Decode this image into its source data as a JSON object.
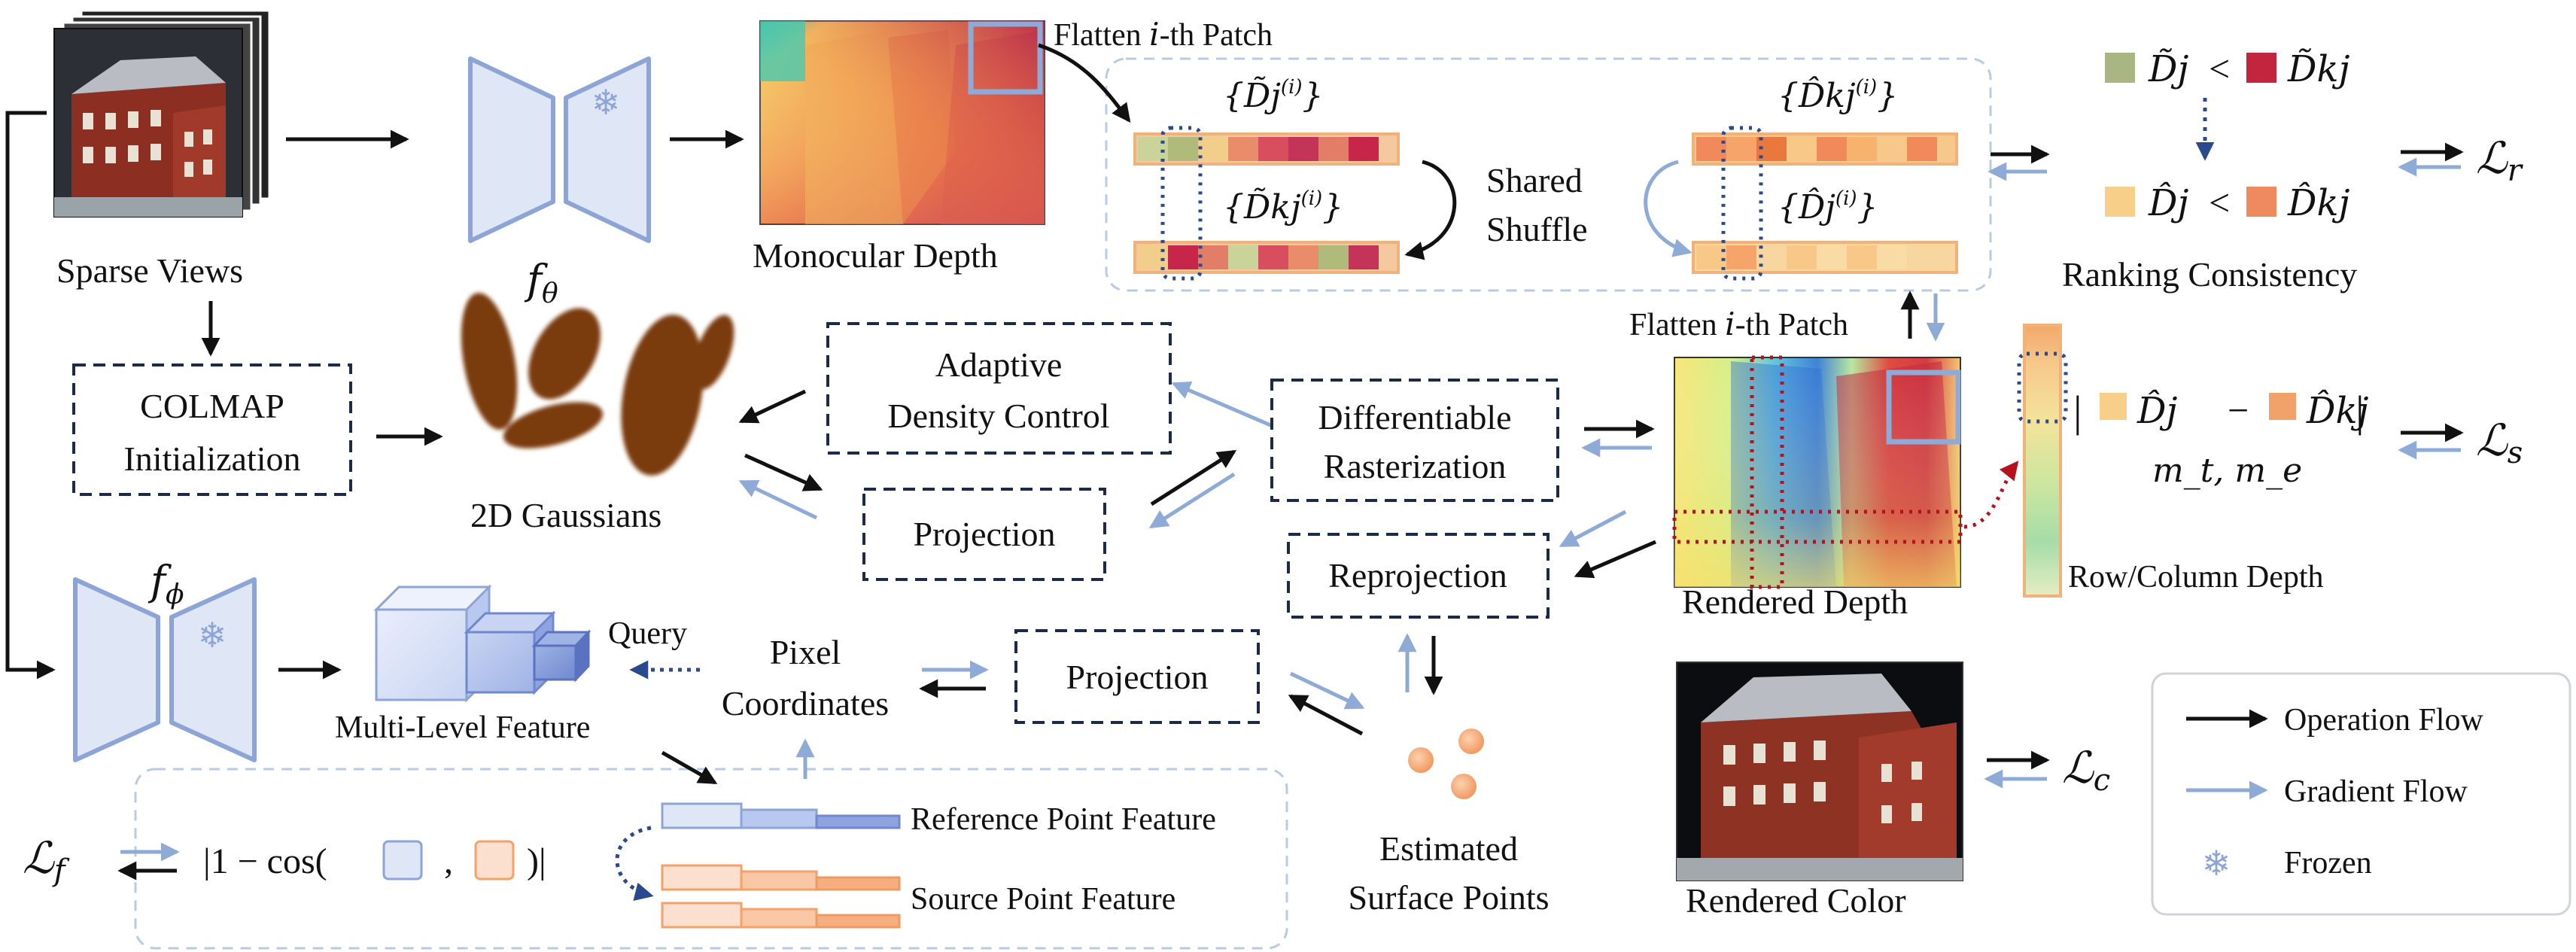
{
  "labels": {
    "sparse_views": "Sparse Views",
    "monocular_depth": "Monocular Depth",
    "flatten_top": "Flatten",
    "flatten_top_th": "-th Patch",
    "flatten_mid": "Flatten",
    "flatten_mid_th": "-th Patch",
    "shared_shuffle_1": "Shared",
    "shared_shuffle_2": "Shuffle",
    "ranking_consistency": "Ranking Consistency",
    "colmap_1": "COLMAP",
    "colmap_2": "Initialization",
    "gaussians_2d": "2D Gaussians",
    "adc_1": "Adaptive",
    "adc_2": "Density Control",
    "projection_top": "Projection",
    "diff_raster_1": "Differentiable",
    "diff_raster_2": "Rasterization",
    "reprojection": "Reprojection",
    "rendered_depth": "Rendered Depth",
    "row_col_depth": "Row/Column Depth",
    "multilevel_feature": "Multi-Level Feature",
    "query": "Query",
    "pixel_coords_1": "Pixel",
    "pixel_coords_2": "Coordinates",
    "projection_bottom": "Projection",
    "estimated_1": "Estimated",
    "estimated_2": "Surface Points",
    "rendered_color": "Rendered Color",
    "reference_point_feature": "Reference Point Feature",
    "source_point_feature": "Source Point Feature",
    "cos_expr_a": "|1 − cos(",
    "cos_expr_b": ",",
    "cos_expr_c": ")|",
    "i_symbol": "i"
  },
  "math": {
    "f_theta": "f",
    "f_theta_sub": "θ",
    "f_phi": "f",
    "f_phi_sub": "ϕ",
    "loss_r": "ℒ",
    "loss_r_sub": "r",
    "loss_s": "ℒ",
    "loss_s_sub": "s",
    "loss_c": "ℒ",
    "loss_c_sub": "c",
    "loss_f": "ℒ",
    "loss_f_sub": "f",
    "mt_me": "m_t, m_e",
    "d_tilde_j": "D̃j",
    "d_tilde_kj": "D̃kj",
    "d_hat_j": "D̂j",
    "d_hat_kj": "D̂kj",
    "lt": "<",
    "minus": "−"
  },
  "legend": {
    "operation_flow": "Operation Flow",
    "gradient_flow": "Gradient Flow",
    "frozen": "Frozen"
  },
  "colors": {
    "operation": "#111111",
    "gradient": "#8eabd8",
    "encoder_fill": "#dfe6f6",
    "encoder_stroke": "#8da5d6",
    "gaussian": "#7a3b0c",
    "red_dotted": "#b3121e",
    "navy_dotted": "#2a4a8c",
    "orange_feature": "#f6b48a"
  }
}
